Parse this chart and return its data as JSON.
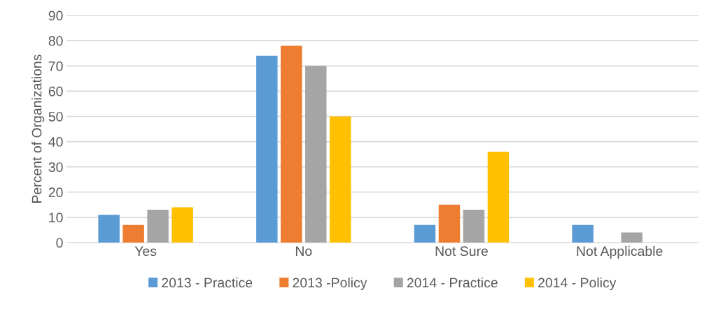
{
  "chart_data": {
    "type": "bar",
    "ylabel": "Percent of Organizations",
    "categories": [
      "Yes",
      "No",
      "Not Sure",
      "Not Applicable"
    ],
    "series": [
      {
        "name": "2013 - Practice",
        "color": "#5b9bd5",
        "values": [
          11,
          74,
          7,
          7
        ]
      },
      {
        "name": "2013 -Policy",
        "color": "#ed7d31",
        "values": [
          7,
          78,
          15,
          0
        ]
      },
      {
        "name": "2014 - Practice",
        "color": "#a5a5a5",
        "values": [
          13,
          70,
          13,
          4
        ]
      },
      {
        "name": "2014 - Policy",
        "color": "#ffc000",
        "values": [
          14,
          50,
          36,
          0
        ]
      }
    ],
    "ylim": [
      0,
      90
    ],
    "yticks": [
      0,
      10,
      20,
      30,
      40,
      50,
      60,
      70,
      80,
      90
    ],
    "grid": "y",
    "legend": "bottom"
  }
}
